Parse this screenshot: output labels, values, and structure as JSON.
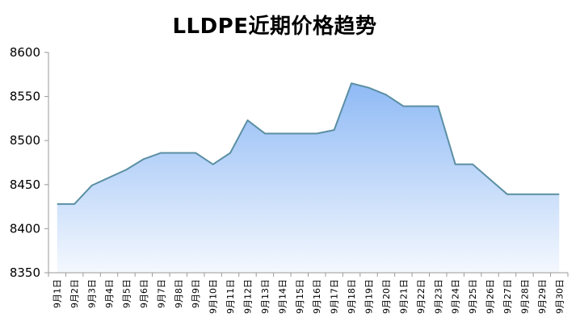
{
  "chart_data": {
    "type": "area",
    "title": "LLDPE近期价格趋势",
    "xlabel": "",
    "ylabel": "",
    "ylim": [
      8350,
      8600
    ],
    "yticks": [
      8350,
      8400,
      8450,
      8500,
      8550,
      8600
    ],
    "grid": false,
    "legend": "none",
    "categories": [
      "9月1日",
      "9月2日",
      "9月3日",
      "9月4日",
      "9月5日",
      "9月6日",
      "9月7日",
      "9月8日",
      "9月9日",
      "9月10日",
      "9月11日",
      "9月12日",
      "9月13日",
      "9月14日",
      "9月15日",
      "9月16日",
      "9月17日",
      "9月18日",
      "9月19日",
      "9月20日",
      "9月21日",
      "9月22日",
      "9月23日",
      "9月24日",
      "9月25日",
      "9月26日",
      "9月27日",
      "9月28日",
      "9月29日",
      "9月30日"
    ],
    "values": [
      8428,
      8428,
      8449,
      8458,
      8467,
      8479,
      8486,
      8486,
      8486,
      8473,
      8486,
      8523,
      8508,
      8508,
      8508,
      8508,
      8512,
      8565,
      8560,
      8552,
      8539,
      8539,
      8539,
      8473,
      8473,
      8456,
      8439,
      8439,
      8439,
      8439
    ],
    "colors": {
      "line": "#5b8fa3",
      "fill_top": "#8fbaf5",
      "fill_bottom": "#f4f8fe",
      "axis": "#9a9a9a"
    }
  }
}
